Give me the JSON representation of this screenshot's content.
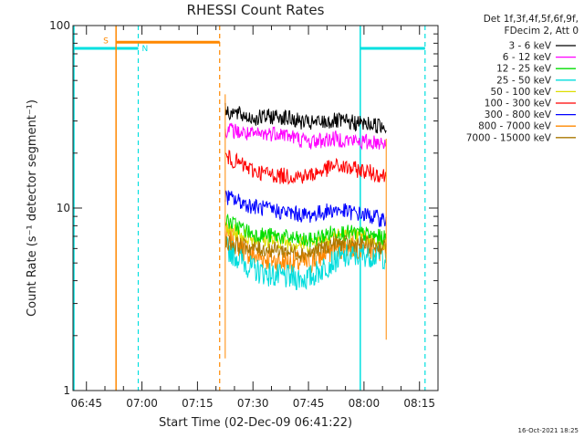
{
  "chart_data": {
    "type": "line",
    "title": "RHESSI Count Rates",
    "xlabel": "Start Time (02-Dec-09 06:41:22)",
    "ylabel": "Count Rate (s⁻¹ detector segment⁻¹)",
    "y_scale": "log",
    "ylim": [
      1,
      100
    ],
    "xlim": [
      "06:41:22",
      "08:20:00"
    ],
    "x_ticks": [
      "06:45",
      "07:00",
      "07:15",
      "07:30",
      "07:45",
      "08:00",
      "08:15"
    ],
    "y_ticks": [
      "1",
      "10",
      "100"
    ],
    "legend_header": [
      "Det 1f,3f,4f,5f,6f,9f,",
      "FDecim 2, Att 0"
    ],
    "legend_position": "top-right, outside plot",
    "data_window": [
      "07:22:30",
      "08:06:00"
    ],
    "series": [
      {
        "name": "3 - 6 keV",
        "color": "#000000",
        "x": [
          "07:23",
          "07:30",
          "07:37",
          "07:45",
          "07:52",
          "08:00",
          "08:06"
        ],
        "values": [
          34,
          31,
          32,
          29,
          30,
          29,
          28
        ]
      },
      {
        "name": "6 - 12 keV",
        "color": "#ff00ff",
        "x": [
          "07:23",
          "07:30",
          "07:37",
          "07:45",
          "07:52",
          "08:00",
          "08:06"
        ],
        "values": [
          27,
          25,
          26,
          23,
          24,
          23,
          23
        ]
      },
      {
        "name": "12 - 25 keV",
        "color": "#00dd00",
        "x": [
          "07:23",
          "07:30",
          "07:37",
          "07:45",
          "07:52",
          "08:00",
          "08:06"
        ],
        "values": [
          8.5,
          7.2,
          7.0,
          6.6,
          7.4,
          7.2,
          6.8
        ]
      },
      {
        "name": "25 - 50 keV",
        "color": "#00dddd",
        "x": [
          "07:23",
          "07:30",
          "07:37",
          "07:45",
          "07:52",
          "08:00",
          "08:06"
        ],
        "values": [
          6.0,
          4.6,
          4.2,
          4.1,
          5.2,
          5.6,
          5.4
        ]
      },
      {
        "name": "50 - 100 keV",
        "color": "#dddd00",
        "x": [
          "07:23",
          "07:30",
          "07:37",
          "07:45",
          "07:52",
          "08:00",
          "08:06"
        ],
        "values": [
          7.6,
          6.8,
          6.6,
          6.3,
          7.1,
          6.9,
          6.5
        ]
      },
      {
        "name": "100 - 300 keV",
        "color": "#ff0000",
        "x": [
          "07:23",
          "07:30",
          "07:37",
          "07:45",
          "07:52",
          "08:00",
          "08:06"
        ],
        "values": [
          19,
          16,
          15,
          15,
          17,
          16,
          15
        ]
      },
      {
        "name": "300 - 800 keV",
        "color": "#0000ff",
        "x": [
          "07:23",
          "07:30",
          "07:37",
          "07:45",
          "07:52",
          "08:00",
          "08:06"
        ],
        "values": [
          11.5,
          10.2,
          9.6,
          9.1,
          9.8,
          9.2,
          8.6
        ]
      },
      {
        "name": "800 - 7000 keV",
        "color": "#ff8800",
        "x": [
          "07:23",
          "07:30",
          "07:37",
          "07:45",
          "07:52",
          "08:00",
          "08:06"
        ],
        "values": [
          7.0,
          5.5,
          5.1,
          5.0,
          6.0,
          6.2,
          5.6
        ]
      },
      {
        "name": "7000 - 15000 keV",
        "color": "#aa7700",
        "x": [
          "07:23",
          "07:30",
          "07:37",
          "07:45",
          "07:52",
          "08:00",
          "08:06"
        ],
        "values": [
          6.5,
          6.0,
          5.9,
          5.6,
          6.4,
          6.3,
          6.1
        ]
      }
    ],
    "markers": {
      "night_start": [
        "06:41:22",
        "06:59:00"
      ],
      "night_end": [
        "07:59:00",
        "08:16:30"
      ],
      "night_label": "N",
      "saa": [
        "06:53:00",
        "07:21:00"
      ],
      "saa_label": "S",
      "cyan_color": "#00e0e0",
      "orange_color": "#ff8800"
    },
    "grid": false
  },
  "footer": {
    "timestamp": "16-Oct-2021 18:25"
  }
}
